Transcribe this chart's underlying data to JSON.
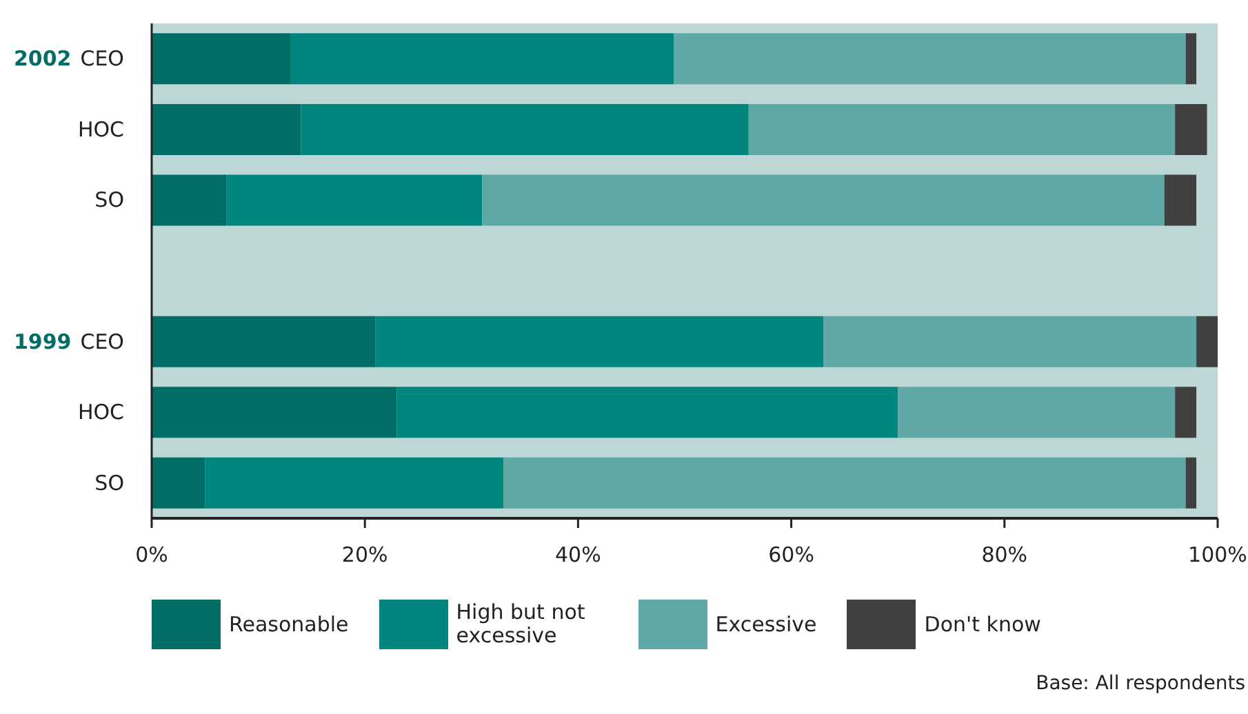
{
  "chart_data": {
    "type": "bar",
    "orientation": "horizontal",
    "stacked": true,
    "categories": [
      "CEO",
      "HOC",
      "SO",
      null,
      "CEO",
      "HOC",
      "SO"
    ],
    "series": [
      {
        "name": "Reasonable",
        "color": "#006e66",
        "values": [
          13,
          14,
          7,
          null,
          21,
          23,
          5
        ]
      },
      {
        "name": "High but not excessive",
        "color": "#00857f",
        "values": [
          36,
          42,
          24,
          null,
          42,
          47,
          28
        ]
      },
      {
        "name": "Excessive",
        "color": "#5fa8a5",
        "values": [
          48,
          40,
          64,
          null,
          35,
          26,
          64
        ]
      },
      {
        "name": "Don't know",
        "color": "#404040",
        "values": [
          1,
          3,
          3,
          null,
          2,
          2,
          1
        ]
      }
    ],
    "xlim": [
      0,
      100
    ],
    "xticks": [
      {
        "value": 0,
        "label": "0%"
      },
      {
        "value": 20,
        "label": "20%"
      },
      {
        "value": 40,
        "label": "40%"
      },
      {
        "value": 60,
        "label": "60%"
      },
      {
        "value": 80,
        "label": "80%"
      },
      {
        "value": 100,
        "label": "100%"
      }
    ],
    "annotations": [
      "2002",
      "1999",
      "Base: All respondents"
    ],
    "legend": "bottom"
  }
}
